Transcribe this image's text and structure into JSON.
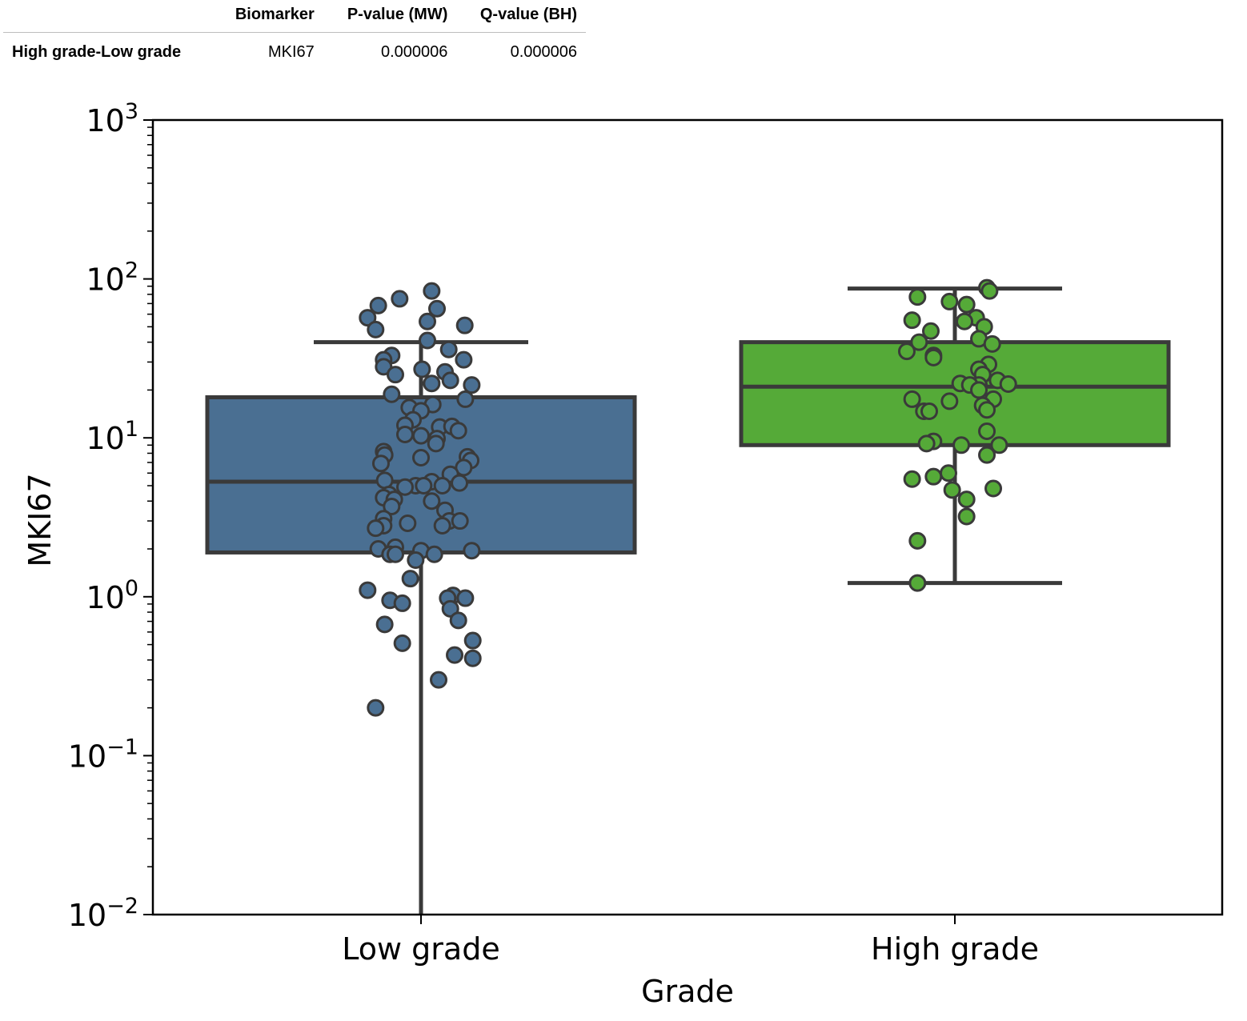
{
  "table": {
    "columns": [
      "Biomarker",
      "P-value (MW)",
      "Q-value (BH)"
    ],
    "rows": [
      {
        "label": "High grade-Low grade",
        "biomarker": "MKI67",
        "p_value": "0.000006",
        "q_value": "0.000006"
      }
    ]
  },
  "chart_data": {
    "type": "box",
    "xlabel": "Grade",
    "ylabel": "MKI67",
    "yscale": "log",
    "ylim": [
      0.01,
      1000
    ],
    "y_ticks": [
      {
        "value": 0.01,
        "base": "10",
        "exp": "−2"
      },
      {
        "value": 0.1,
        "base": "10",
        "exp": "−1"
      },
      {
        "value": 1,
        "base": "10",
        "exp": "0"
      },
      {
        "value": 10,
        "base": "10",
        "exp": "1"
      },
      {
        "value": 100,
        "base": "10",
        "exp": "2"
      },
      {
        "value": 1000,
        "base": "10",
        "exp": "3"
      }
    ],
    "grid": false,
    "categories": [
      "Low grade",
      "High grade"
    ],
    "boxes": [
      {
        "category": "Low grade",
        "color": "#4a6f92",
        "q1": 1.9,
        "median": 5.3,
        "q3": 18,
        "whisker_low": 0.01,
        "whisker_high": 40,
        "points": [
          {
            "x": -0.1,
            "y": 57
          },
          {
            "x": -0.08,
            "y": 68
          },
          {
            "x": -0.04,
            "y": 75
          },
          {
            "x": 0.02,
            "y": 84
          },
          {
            "x": 0.03,
            "y": 65
          },
          {
            "x": 0.012,
            "y": 54
          },
          {
            "x": 0.082,
            "y": 51
          },
          {
            "x": -0.085,
            "y": 48
          },
          {
            "x": 0.012,
            "y": 41
          },
          {
            "x": 0.052,
            "y": 36
          },
          {
            "x": -0.055,
            "y": 33
          },
          {
            "x": -0.07,
            "y": 31
          },
          {
            "x": 0.08,
            "y": 31
          },
          {
            "x": -0.07,
            "y": 28
          },
          {
            "x": 0.002,
            "y": 27
          },
          {
            "x": 0.045,
            "y": 26
          },
          {
            "x": -0.048,
            "y": 25
          },
          {
            "x": 0.055,
            "y": 23
          },
          {
            "x": 0.02,
            "y": 22
          },
          {
            "x": 0.095,
            "y": 21.5
          },
          {
            "x": -0.055,
            "y": 18.8
          },
          {
            "x": 0.083,
            "y": 17.5
          },
          {
            "x": 0.022,
            "y": 16.2
          },
          {
            "x": -0.022,
            "y": 15.5
          },
          {
            "x": 0.0,
            "y": 14.8
          },
          {
            "x": -0.015,
            "y": 13
          },
          {
            "x": -0.03,
            "y": 12
          },
          {
            "x": 0.035,
            "y": 11.7
          },
          {
            "x": 0.058,
            "y": 11.8
          },
          {
            "x": 0.07,
            "y": 11.1
          },
          {
            "x": -0.03,
            "y": 10.5
          },
          {
            "x": 0.0,
            "y": 10.3
          },
          {
            "x": 0.03,
            "y": 9.9
          },
          {
            "x": 0.028,
            "y": 9.2
          },
          {
            "x": -0.07,
            "y": 8.2
          },
          {
            "x": -0.068,
            "y": 7.8
          },
          {
            "x": 0.087,
            "y": 7.6
          },
          {
            "x": 0.093,
            "y": 7.2
          },
          {
            "x": 0.0,
            "y": 7.5
          },
          {
            "x": -0.075,
            "y": 6.9
          },
          {
            "x": 0.08,
            "y": 6.5
          },
          {
            "x": 0.055,
            "y": 5.9
          },
          {
            "x": -0.068,
            "y": 5.4
          },
          {
            "x": 0.02,
            "y": 5.3
          },
          {
            "x": 0.072,
            "y": 5.2
          },
          {
            "x": -0.01,
            "y": 5.0
          },
          {
            "x": 0.04,
            "y": 5.0
          },
          {
            "x": 0.005,
            "y": 5.0
          },
          {
            "x": -0.03,
            "y": 4.9
          },
          {
            "x": -0.06,
            "y": 4.4
          },
          {
            "x": -0.07,
            "y": 4.2
          },
          {
            "x": -0.05,
            "y": 4.1
          },
          {
            "x": 0.02,
            "y": 4.0
          },
          {
            "x": -0.055,
            "y": 3.7
          },
          {
            "x": 0.045,
            "y": 3.5
          },
          {
            "x": -0.07,
            "y": 3.1
          },
          {
            "x": 0.053,
            "y": 3.0
          },
          {
            "x": 0.073,
            "y": 3.0
          },
          {
            "x": -0.025,
            "y": 2.9
          },
          {
            "x": 0.04,
            "y": 2.8
          },
          {
            "x": -0.07,
            "y": 2.8
          },
          {
            "x": -0.085,
            "y": 2.7
          },
          {
            "x": -0.048,
            "y": 2.05
          },
          {
            "x": -0.08,
            "y": 2.0
          },
          {
            "x": 0.0,
            "y": 1.95
          },
          {
            "x": 0.095,
            "y": 1.95
          },
          {
            "x": -0.058,
            "y": 1.85
          },
          {
            "x": 0.025,
            "y": 1.85
          },
          {
            "x": -0.048,
            "y": 1.85
          },
          {
            "x": -0.01,
            "y": 1.7
          },
          {
            "x": -0.02,
            "y": 1.3
          },
          {
            "x": -0.1,
            "y": 1.1
          },
          {
            "x": 0.06,
            "y": 1.02
          },
          {
            "x": 0.05,
            "y": 0.98
          },
          {
            "x": 0.083,
            "y": 0.98
          },
          {
            "x": -0.058,
            "y": 0.95
          },
          {
            "x": -0.035,
            "y": 0.91
          },
          {
            "x": 0.055,
            "y": 0.84
          },
          {
            "x": 0.07,
            "y": 0.71
          },
          {
            "x": -0.068,
            "y": 0.67
          },
          {
            "x": 0.097,
            "y": 0.53
          },
          {
            "x": -0.035,
            "y": 0.51
          },
          {
            "x": 0.063,
            "y": 0.43
          },
          {
            "x": 0.097,
            "y": 0.41
          },
          {
            "x": 0.033,
            "y": 0.3
          },
          {
            "x": -0.085,
            "y": 0.2
          }
        ]
      },
      {
        "category": "High grade",
        "color": "#55aa38",
        "q1": 9,
        "median": 21,
        "q3": 40,
        "whisker_low": 1.22,
        "whisker_high": 87,
        "points": [
          {
            "x": 0.06,
            "y": 88
          },
          {
            "x": 0.065,
            "y": 84
          },
          {
            "x": -0.07,
            "y": 77
          },
          {
            "x": -0.01,
            "y": 72
          },
          {
            "x": 0.022,
            "y": 69
          },
          {
            "x": 0.04,
            "y": 57
          },
          {
            "x": -0.08,
            "y": 55
          },
          {
            "x": 0.018,
            "y": 54
          },
          {
            "x": 0.055,
            "y": 50
          },
          {
            "x": -0.045,
            "y": 47
          },
          {
            "x": 0.045,
            "y": 42
          },
          {
            "x": -0.067,
            "y": 40
          },
          {
            "x": 0.07,
            "y": 39
          },
          {
            "x": -0.09,
            "y": 35
          },
          {
            "x": -0.04,
            "y": 33
          },
          {
            "x": -0.04,
            "y": 32
          },
          {
            "x": 0.063,
            "y": 29
          },
          {
            "x": 0.045,
            "y": 27
          },
          {
            "x": 0.052,
            "y": 25
          },
          {
            "x": 0.08,
            "y": 23
          },
          {
            "x": 0.01,
            "y": 22
          },
          {
            "x": 0.045,
            "y": 21.5
          },
          {
            "x": 0.1,
            "y": 21.8
          },
          {
            "x": 0.028,
            "y": 21.5
          },
          {
            "x": 0.045,
            "y": 20
          },
          {
            "x": -0.08,
            "y": 17.5
          },
          {
            "x": 0.072,
            "y": 17.5
          },
          {
            "x": -0.01,
            "y": 17
          },
          {
            "x": 0.052,
            "y": 16
          },
          {
            "x": 0.06,
            "y": 15
          },
          {
            "x": -0.058,
            "y": 14.7
          },
          {
            "x": -0.048,
            "y": 14.7
          },
          {
            "x": 0.06,
            "y": 11
          },
          {
            "x": -0.04,
            "y": 9.5
          },
          {
            "x": -0.053,
            "y": 9.2
          },
          {
            "x": 0.012,
            "y": 9
          },
          {
            "x": 0.083,
            "y": 9
          },
          {
            "x": 0.06,
            "y": 7.8
          },
          {
            "x": -0.012,
            "y": 6
          },
          {
            "x": -0.04,
            "y": 5.7
          },
          {
            "x": -0.08,
            "y": 5.5
          },
          {
            "x": 0.072,
            "y": 4.8
          },
          {
            "x": -0.005,
            "y": 4.7
          },
          {
            "x": 0.022,
            "y": 4.1
          },
          {
            "x": 0.022,
            "y": 3.2
          },
          {
            "x": -0.07,
            "y": 2.25
          },
          {
            "x": -0.07,
            "y": 1.22
          }
        ]
      }
    ]
  }
}
